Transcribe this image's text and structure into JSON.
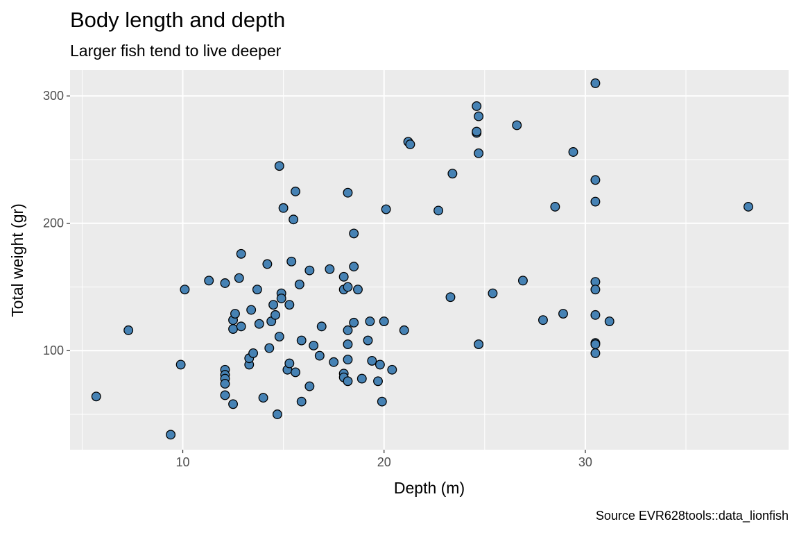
{
  "chart_data": {
    "type": "scatter",
    "title": "Body length and depth",
    "subtitle": "Larger fish tend to live deeper",
    "xlabel": "Depth (m)",
    "ylabel": "Total weight (gr)",
    "caption": "Source EVR628tools::data_lionfish",
    "xlim": [
      4.4,
      40.1
    ],
    "ylim": [
      22.2,
      320.3
    ],
    "x_ticks": [
      10,
      20,
      30
    ],
    "y_ticks": [
      100,
      200,
      300
    ],
    "x_minor_ticks": [
      5,
      15,
      25,
      35
    ],
    "y_minor_ticks": [
      50,
      150,
      250
    ],
    "grid": true,
    "point_fill": "#4682B4",
    "point_stroke": "#000000",
    "panel_background": "#EBEBEB",
    "points": [
      {
        "x": 5.7,
        "y": 64
      },
      {
        "x": 7.3,
        "y": 116
      },
      {
        "x": 9.4,
        "y": 34
      },
      {
        "x": 9.9,
        "y": 89
      },
      {
        "x": 10.1,
        "y": 148
      },
      {
        "x": 11.3,
        "y": 155
      },
      {
        "x": 12.1,
        "y": 153
      },
      {
        "x": 12.1,
        "y": 85
      },
      {
        "x": 12.1,
        "y": 81
      },
      {
        "x": 12.1,
        "y": 78
      },
      {
        "x": 12.1,
        "y": 74
      },
      {
        "x": 12.1,
        "y": 65
      },
      {
        "x": 12.5,
        "y": 58
      },
      {
        "x": 12.5,
        "y": 117
      },
      {
        "x": 12.5,
        "y": 124
      },
      {
        "x": 12.6,
        "y": 129
      },
      {
        "x": 12.8,
        "y": 157
      },
      {
        "x": 12.9,
        "y": 176
      },
      {
        "x": 12.9,
        "y": 119
      },
      {
        "x": 13.3,
        "y": 89
      },
      {
        "x": 13.3,
        "y": 94
      },
      {
        "x": 13.4,
        "y": 132
      },
      {
        "x": 13.5,
        "y": 98
      },
      {
        "x": 13.7,
        "y": 148
      },
      {
        "x": 13.8,
        "y": 121
      },
      {
        "x": 14.0,
        "y": 63
      },
      {
        "x": 14.2,
        "y": 168
      },
      {
        "x": 14.3,
        "y": 102
      },
      {
        "x": 14.4,
        "y": 123
      },
      {
        "x": 14.5,
        "y": 136
      },
      {
        "x": 14.6,
        "y": 128
      },
      {
        "x": 14.7,
        "y": 50
      },
      {
        "x": 14.8,
        "y": 111
      },
      {
        "x": 14.8,
        "y": 245
      },
      {
        "x": 14.9,
        "y": 145
      },
      {
        "x": 14.9,
        "y": 141
      },
      {
        "x": 15.0,
        "y": 212
      },
      {
        "x": 15.2,
        "y": 85
      },
      {
        "x": 15.3,
        "y": 90
      },
      {
        "x": 15.3,
        "y": 136
      },
      {
        "x": 15.4,
        "y": 170
      },
      {
        "x": 15.5,
        "y": 203
      },
      {
        "x": 15.6,
        "y": 225
      },
      {
        "x": 15.6,
        "y": 83
      },
      {
        "x": 15.8,
        "y": 152
      },
      {
        "x": 15.9,
        "y": 60
      },
      {
        "x": 15.9,
        "y": 108
      },
      {
        "x": 16.3,
        "y": 72
      },
      {
        "x": 16.3,
        "y": 163
      },
      {
        "x": 16.5,
        "y": 104
      },
      {
        "x": 16.8,
        "y": 96
      },
      {
        "x": 16.9,
        "y": 119
      },
      {
        "x": 17.3,
        "y": 164
      },
      {
        "x": 17.5,
        "y": 91
      },
      {
        "x": 18.0,
        "y": 158
      },
      {
        "x": 18.0,
        "y": 148
      },
      {
        "x": 18.0,
        "y": 82
      },
      {
        "x": 18.0,
        "y": 79
      },
      {
        "x": 18.2,
        "y": 224
      },
      {
        "x": 18.2,
        "y": 150
      },
      {
        "x": 18.2,
        "y": 116
      },
      {
        "x": 18.2,
        "y": 105
      },
      {
        "x": 18.2,
        "y": 93
      },
      {
        "x": 18.2,
        "y": 76
      },
      {
        "x": 18.5,
        "y": 192
      },
      {
        "x": 18.5,
        "y": 166
      },
      {
        "x": 18.5,
        "y": 122
      },
      {
        "x": 18.7,
        "y": 148
      },
      {
        "x": 18.9,
        "y": 78
      },
      {
        "x": 19.2,
        "y": 108
      },
      {
        "x": 19.3,
        "y": 123
      },
      {
        "x": 19.4,
        "y": 92
      },
      {
        "x": 19.7,
        "y": 76
      },
      {
        "x": 19.8,
        "y": 89
      },
      {
        "x": 19.9,
        "y": 60
      },
      {
        "x": 20.0,
        "y": 123
      },
      {
        "x": 20.1,
        "y": 211
      },
      {
        "x": 20.4,
        "y": 85
      },
      {
        "x": 21.0,
        "y": 116
      },
      {
        "x": 21.2,
        "y": 264
      },
      {
        "x": 21.3,
        "y": 262
      },
      {
        "x": 22.7,
        "y": 210
      },
      {
        "x": 23.3,
        "y": 142
      },
      {
        "x": 23.4,
        "y": 239
      },
      {
        "x": 24.6,
        "y": 292
      },
      {
        "x": 24.6,
        "y": 271
      },
      {
        "x": 24.6,
        "y": 272
      },
      {
        "x": 24.7,
        "y": 284
      },
      {
        "x": 24.7,
        "y": 255
      },
      {
        "x": 24.7,
        "y": 105
      },
      {
        "x": 25.4,
        "y": 145
      },
      {
        "x": 26.6,
        "y": 277
      },
      {
        "x": 26.9,
        "y": 155
      },
      {
        "x": 27.9,
        "y": 124
      },
      {
        "x": 28.5,
        "y": 213
      },
      {
        "x": 28.9,
        "y": 129
      },
      {
        "x": 29.4,
        "y": 256
      },
      {
        "x": 30.5,
        "y": 310
      },
      {
        "x": 30.5,
        "y": 234
      },
      {
        "x": 30.5,
        "y": 217
      },
      {
        "x": 30.5,
        "y": 154
      },
      {
        "x": 30.5,
        "y": 148
      },
      {
        "x": 30.5,
        "y": 128
      },
      {
        "x": 30.5,
        "y": 106
      },
      {
        "x": 30.5,
        "y": 105
      },
      {
        "x": 30.5,
        "y": 98
      },
      {
        "x": 31.2,
        "y": 123
      },
      {
        "x": 38.1,
        "y": 213
      }
    ]
  }
}
